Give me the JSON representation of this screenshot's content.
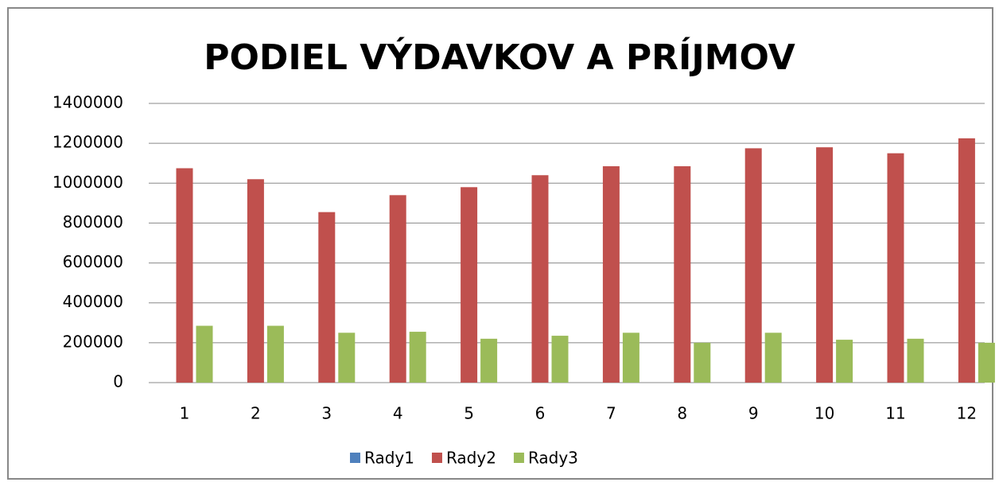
{
  "chart_data": {
    "type": "bar",
    "title": "PODIEL VÝDAVKOV A PRÍJMOV",
    "categories": [
      "1",
      "2",
      "3",
      "4",
      "5",
      "6",
      "7",
      "8",
      "9",
      "10",
      "11",
      "12"
    ],
    "series": [
      {
        "name": "Rady1",
        "color": "#4f81bd",
        "values": [
          0,
          0,
          0,
          0,
          0,
          0,
          0,
          0,
          0,
          0,
          0,
          0
        ]
      },
      {
        "name": "Rady2",
        "color": "#c0504d",
        "values": [
          1075000,
          1020000,
          855000,
          940000,
          980000,
          1040000,
          1085000,
          1085000,
          1175000,
          1180000,
          1150000,
          1225000
        ]
      },
      {
        "name": "Rady3",
        "color": "#9bbb59",
        "values": [
          285000,
          285000,
          250000,
          255000,
          220000,
          235000,
          250000,
          200000,
          250000,
          215000,
          220000,
          200000
        ]
      }
    ],
    "ylim": [
      0,
      1400000
    ],
    "yticks": [
      0,
      200000,
      400000,
      600000,
      800000,
      1000000,
      1200000,
      1400000
    ],
    "grid": true,
    "legend": "bottom"
  }
}
